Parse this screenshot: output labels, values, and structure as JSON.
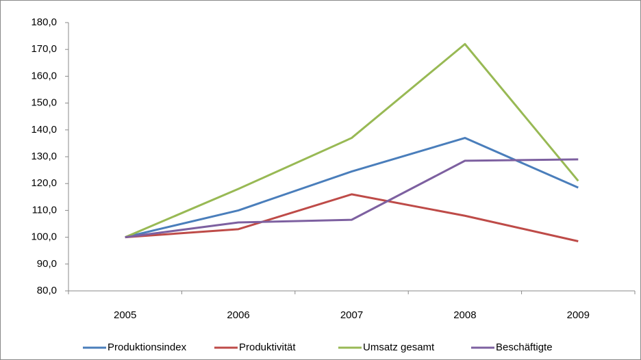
{
  "chart_data": {
    "type": "line",
    "categories": [
      "2005",
      "2006",
      "2007",
      "2008",
      "2009"
    ],
    "series": [
      {
        "name": "Produktionsindex",
        "color": "#4a7ebb",
        "values": [
          100,
          110,
          124.5,
          137,
          118.5
        ]
      },
      {
        "name": "Produktivität",
        "color": "#be4b48",
        "values": [
          100,
          103,
          116,
          108,
          98.5
        ]
      },
      {
        "name": "Umsatz gesamt",
        "color": "#98b954",
        "values": [
          100,
          118,
          137,
          172,
          121
        ]
      },
      {
        "name": "Beschäftigte",
        "color": "#7d60a0",
        "values": [
          100,
          105.5,
          106.5,
          128.5,
          129
        ]
      }
    ],
    "ylim": [
      80,
      180
    ],
    "yticks": [
      {
        "value": 80,
        "label": "80,0"
      },
      {
        "value": 90,
        "label": "90,0"
      },
      {
        "value": 100,
        "label": "100,0"
      },
      {
        "value": 110,
        "label": "110,0"
      },
      {
        "value": 120,
        "label": "120,0"
      },
      {
        "value": 130,
        "label": "130,0"
      },
      {
        "value": 140,
        "label": "140,0"
      },
      {
        "value": 150,
        "label": "150,0"
      },
      {
        "value": 160,
        "label": "160,0"
      },
      {
        "value": 170,
        "label": "170,0"
      },
      {
        "value": 180,
        "label": "180,0"
      }
    ],
    "grid": false,
    "legend": "bottom"
  }
}
